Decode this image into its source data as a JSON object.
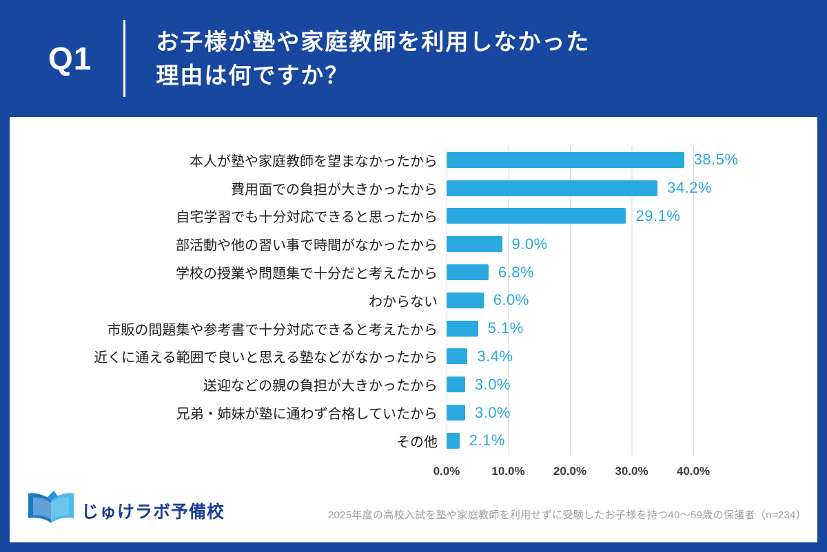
{
  "header": {
    "q_label": "Q1",
    "title_line1": "お子様が塾や家庭教師を利用しなかった",
    "title_line2": "理由は何ですか？"
  },
  "chart_data": {
    "type": "bar",
    "orientation": "horizontal",
    "title": "お子様が塾や家庭教師を利用しなかった理由は何ですか？",
    "categories": [
      "本人が塾や家庭教師を望まなかったから",
      "費用面での負担が大きかったから",
      "自宅学習でも十分対応できると思ったから",
      "部活動や他の習い事で時間がなかったから",
      "学校の授業や問題集で十分だと考えたから",
      "わからない",
      "市販の問題集や参考書で十分対応できると考えたから",
      "近くに通える範囲で良いと思える塾などがなかったから",
      "送迎などの親の負担が大きかったから",
      "兄弟・姉妹が塾に通わず合格していたから",
      "その他"
    ],
    "values": [
      38.5,
      34.2,
      29.1,
      9.0,
      6.8,
      6.0,
      5.1,
      3.4,
      3.0,
      3.0,
      2.1
    ],
    "value_labels": [
      "38.5%",
      "34.2%",
      "29.1%",
      "9.0%",
      "6.8%",
      "6.0%",
      "5.1%",
      "3.4%",
      "3.0%",
      "3.0%",
      "2.1%"
    ],
    "xlabel": "",
    "ylabel": "",
    "xlim": [
      0,
      40
    ],
    "x_ticks": [
      "0.0%",
      "10.0%",
      "20.0%",
      "30.0%",
      "40.0%"
    ],
    "grid": true,
    "legend": false
  },
  "footer": {
    "logo_text": "じゅけラボ予備校",
    "note": "2025年度の高校入試を塾や家庭教師を利用せずに受験したお子様を持つ40～59歳の保護者（n=234）"
  },
  "colors": {
    "header_bg": "#17479E",
    "bar": "#29A9E0",
    "value_label": "#29A9E0",
    "gridline": "#D9D9D9",
    "logo_text": "#1A3E97",
    "note_text": "#9E9E9E"
  }
}
